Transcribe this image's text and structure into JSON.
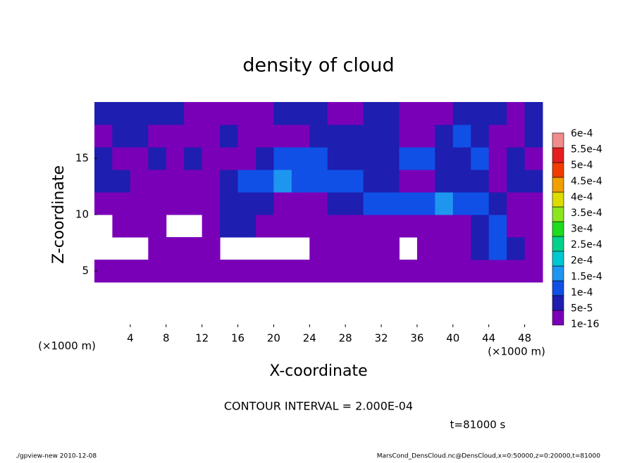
{
  "chart_data": {
    "type": "contour",
    "title": "density of cloud",
    "x_label": "X-coordinate",
    "y_label": "Z-coordinate",
    "x_unit": "(×1000 m)",
    "y_unit": "(×1000 m)",
    "contour_note": "CONTOUR INTERVAL = 2.000E-04",
    "time_note": "t=81000 s",
    "footer_left": "./gpview-new  2010-12-08",
    "footer_right": "MarsCond_DensCloud.nc@DensCloud,x=0:50000,z=0:20000,t=81000",
    "xlim": [
      0,
      50
    ],
    "ylim": [
      0,
      20
    ],
    "xticks": [
      4,
      8,
      12,
      16,
      20,
      24,
      28,
      32,
      36,
      40,
      44,
      48
    ],
    "yticks": [
      5,
      10,
      15
    ],
    "x": [
      1,
      3,
      5,
      7,
      9,
      11,
      13,
      15,
      17,
      19,
      21,
      23,
      25,
      27,
      29,
      31,
      33,
      35,
      37,
      39,
      41,
      43,
      45,
      47,
      49
    ],
    "y": [
      1,
      3,
      5,
      7,
      9,
      11,
      13,
      15,
      17,
      19
    ],
    "z": [
      [
        null,
        null,
        null,
        null,
        null,
        null,
        null,
        null,
        null,
        null,
        null,
        null,
        null,
        null,
        null,
        null,
        null,
        null,
        null,
        null,
        null,
        null,
        null,
        null,
        null
      ],
      [
        null,
        null,
        null,
        null,
        null,
        null,
        null,
        null,
        null,
        null,
        null,
        null,
        null,
        null,
        null,
        null,
        null,
        null,
        null,
        null,
        null,
        null,
        null,
        null,
        null
      ],
      [
        2e-05,
        2e-05,
        2e-05,
        2e-05,
        2e-05,
        2e-05,
        2e-05,
        2e-05,
        2e-05,
        2e-05,
        2e-05,
        2e-05,
        2e-05,
        2e-05,
        2e-05,
        2e-05,
        2e-05,
        2e-05,
        2e-05,
        2e-05,
        2e-05,
        2e-05,
        2e-05,
        2e-05,
        2e-05
      ],
      [
        null,
        null,
        null,
        2e-05,
        2e-05,
        2e-05,
        2e-05,
        null,
        null,
        null,
        null,
        null,
        2e-05,
        2e-05,
        2e-05,
        2e-05,
        2e-05,
        null,
        2e-05,
        2e-05,
        2e-05,
        7e-05,
        0.00012,
        7e-05,
        2e-05
      ],
      [
        null,
        2e-05,
        2e-05,
        2e-05,
        null,
        null,
        2e-05,
        7e-05,
        7e-05,
        2e-05,
        2e-05,
        2e-05,
        2e-05,
        2e-05,
        2e-05,
        2e-05,
        2e-05,
        2e-05,
        2e-05,
        2e-05,
        2e-05,
        7e-05,
        0.00012,
        2e-05,
        2e-05
      ],
      [
        2e-05,
        2e-05,
        2e-05,
        2e-05,
        2e-05,
        2e-05,
        2e-05,
        7e-05,
        7e-05,
        7e-05,
        2e-05,
        2e-05,
        2e-05,
        7e-05,
        7e-05,
        0.00012,
        0.00012,
        0.00012,
        0.00012,
        0.00017,
        0.00012,
        0.00012,
        7e-05,
        2e-05,
        2e-05
      ],
      [
        7e-05,
        7e-05,
        2e-05,
        2e-05,
        2e-05,
        2e-05,
        2e-05,
        7e-05,
        0.00012,
        0.00012,
        0.00017,
        0.00012,
        0.00012,
        0.00012,
        0.00012,
        7e-05,
        7e-05,
        2e-05,
        2e-05,
        7e-05,
        7e-05,
        7e-05,
        2e-05,
        7e-05,
        7e-05
      ],
      [
        7e-05,
        2e-05,
        2e-05,
        7e-05,
        2e-05,
        7e-05,
        2e-05,
        2e-05,
        2e-05,
        7e-05,
        0.00012,
        0.00012,
        0.00012,
        7e-05,
        7e-05,
        7e-05,
        7e-05,
        0.00012,
        0.00012,
        7e-05,
        7e-05,
        0.00012,
        2e-05,
        7e-05,
        2e-05
      ],
      [
        2e-05,
        7e-05,
        7e-05,
        2e-05,
        2e-05,
        2e-05,
        2e-05,
        7e-05,
        2e-05,
        2e-05,
        2e-05,
        2e-05,
        7e-05,
        7e-05,
        7e-05,
        7e-05,
        7e-05,
        2e-05,
        2e-05,
        7e-05,
        0.00012,
        7e-05,
        2e-05,
        2e-05,
        7e-05
      ],
      [
        7e-05,
        7e-05,
        7e-05,
        7e-05,
        7e-05,
        2e-05,
        2e-05,
        2e-05,
        2e-05,
        2e-05,
        7e-05,
        7e-05,
        7e-05,
        2e-05,
        2e-05,
        7e-05,
        7e-05,
        2e-05,
        2e-05,
        2e-05,
        7e-05,
        7e-05,
        7e-05,
        2e-05,
        7e-05
      ]
    ],
    "levels": [
      {
        "value": 1e-16,
        "label": "1e-16"
      },
      {
        "value": 5e-05,
        "label": "5e-5"
      },
      {
        "value": 0.0001,
        "label": "1e-4"
      },
      {
        "value": 0.00015,
        "label": "1.5e-4"
      },
      {
        "value": 0.0002,
        "label": "2e-4"
      },
      {
        "value": 0.00025,
        "label": "2.5e-4"
      },
      {
        "value": 0.0003,
        "label": "3e-4"
      },
      {
        "value": 0.00035,
        "label": "3.5e-4"
      },
      {
        "value": 0.0004,
        "label": "4e-4"
      },
      {
        "value": 0.00045,
        "label": "4.5e-4"
      },
      {
        "value": 0.0005,
        "label": "5e-4"
      },
      {
        "value": 0.00055,
        "label": "5.5e-4"
      },
      {
        "value": 0.0006,
        "label": "6e-4"
      }
    ],
    "colors": [
      "#7a00b8",
      "#1e1eb0",
      "#1050e6",
      "#1e96f0",
      "#00c8d2",
      "#00d28c",
      "#1edc1e",
      "#8ce61e",
      "#dcdc00",
      "#f0a000",
      "#f03c00",
      "#e61e1e",
      "#f08c8c"
    ]
  }
}
